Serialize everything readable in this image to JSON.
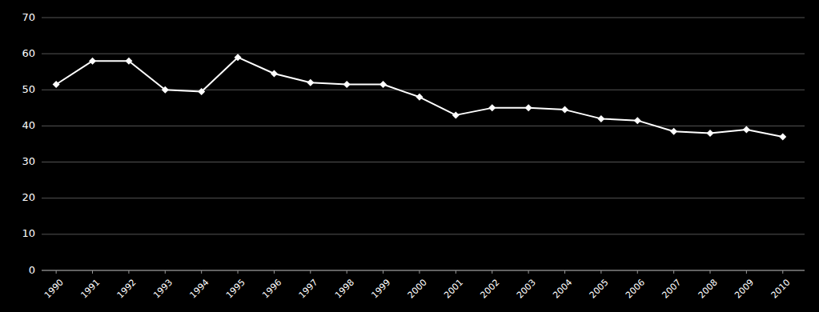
{
  "chart_data": {
    "type": "line",
    "x": [
      1990,
      1991,
      1992,
      1993,
      1994,
      1995,
      1996,
      1997,
      1998,
      1999,
      2000,
      2001,
      2002,
      2003,
      2004,
      2005,
      2006,
      2007,
      2008,
      2009,
      2010
    ],
    "values": [
      51.5,
      58.0,
      58.0,
      50.0,
      49.5,
      59.0,
      54.5,
      52.0,
      51.5,
      51.5,
      48.0,
      43.0,
      45.0,
      45.0,
      44.5,
      42.0,
      41.5,
      38.5,
      38.0,
      39.0,
      37.0
    ],
    "color": "#ffffff",
    "marker": "diamond",
    "xlim": [
      1989.6,
      2010.6
    ],
    "xticks": [
      1990,
      1991,
      1992,
      1993,
      1994,
      1995,
      1996,
      1997,
      1998,
      1999,
      2000,
      2001,
      2002,
      2003,
      2004,
      2005,
      2006,
      2007,
      2008,
      2009,
      2010
    ],
    "ylim": [
      0,
      70
    ],
    "yticks": [
      0,
      10,
      20,
      30,
      40,
      50,
      60,
      70
    ],
    "grid": true
  }
}
